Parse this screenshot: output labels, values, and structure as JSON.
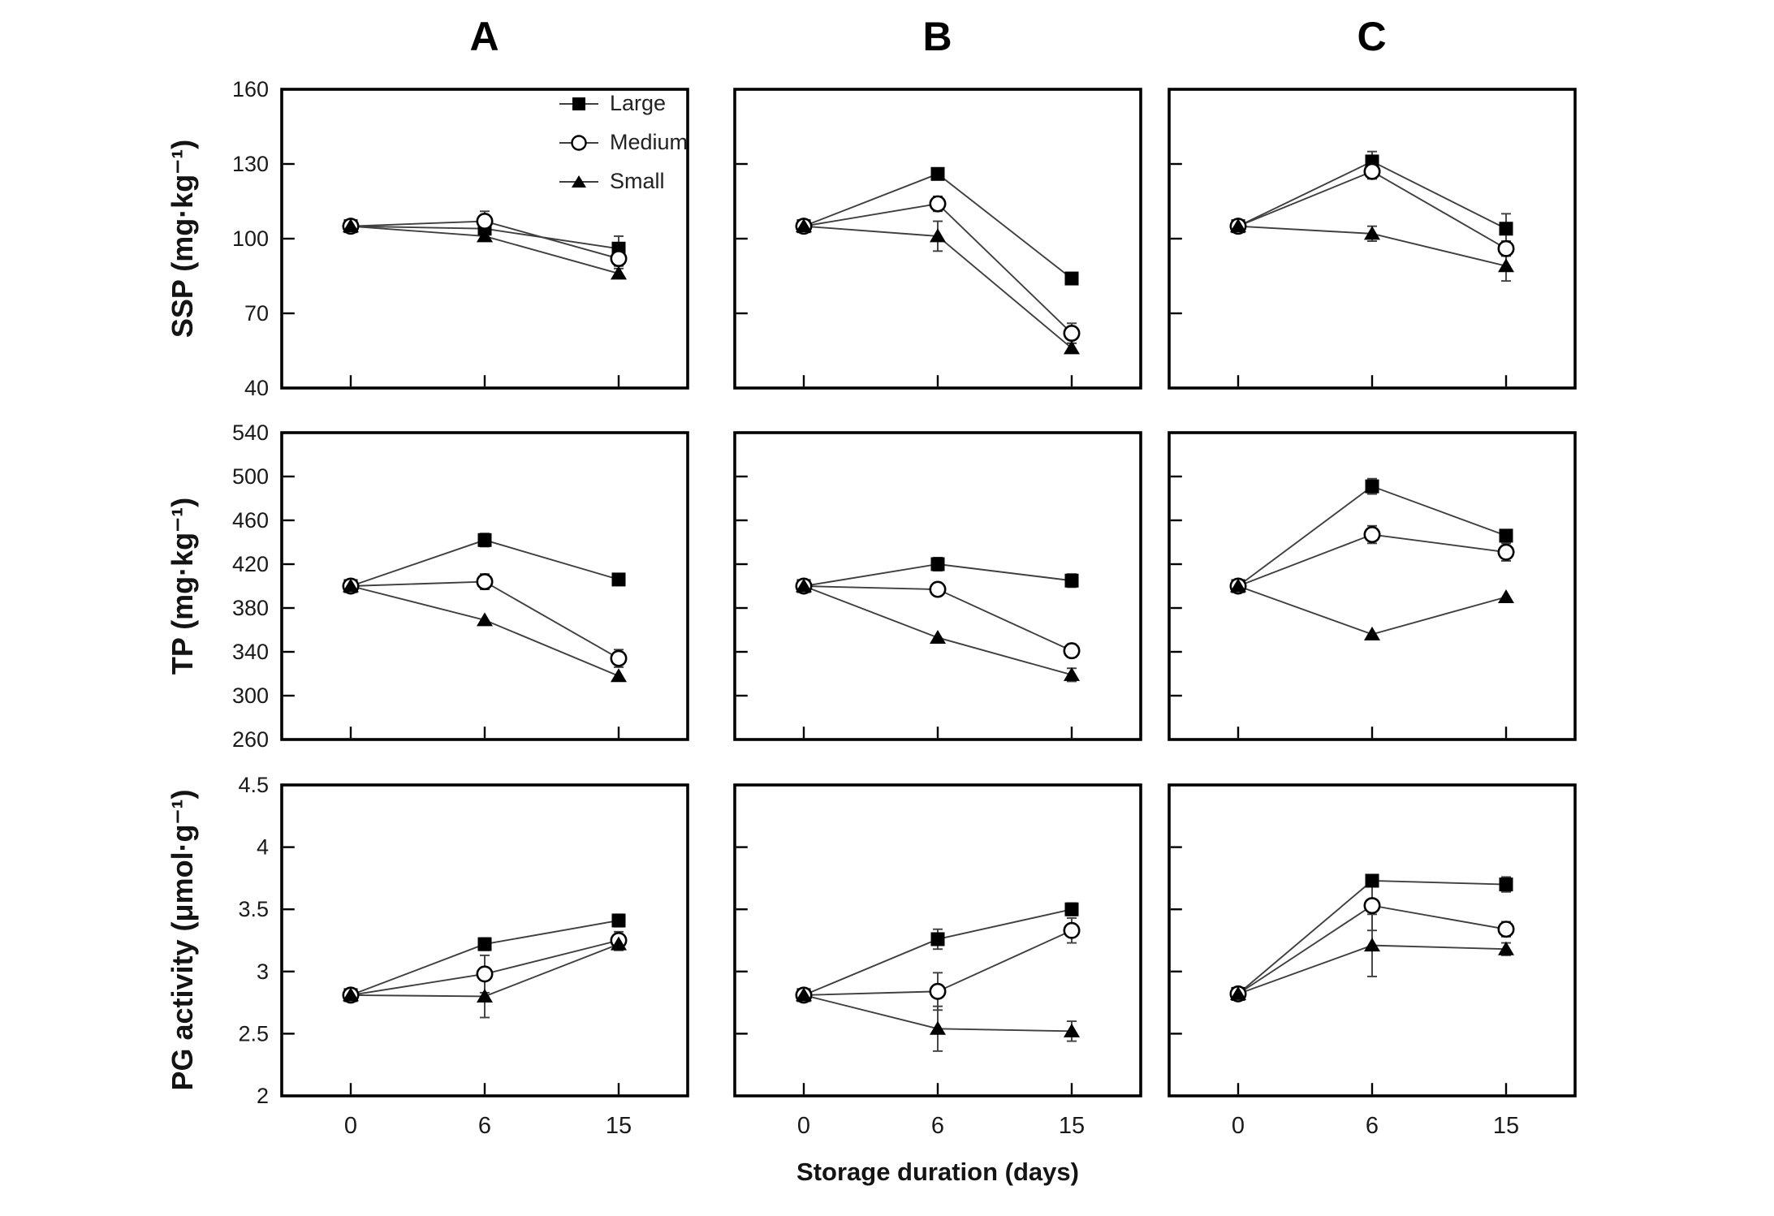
{
  "figure": {
    "column_titles": [
      "A",
      "B",
      "C"
    ],
    "rows": [
      {
        "ylabel": "SSP (mg·kg⁻¹)"
      },
      {
        "ylabel": "TP (mg·kg⁻¹)"
      },
      {
        "ylabel": "PG activity (μmol·g⁻¹)"
      }
    ],
    "x_axis": {
      "label": "Storage duration (days)",
      "tick_labels": [
        "0",
        "6",
        "15"
      ]
    },
    "legend": {
      "position": "top-right-of-panel-A",
      "items": [
        {
          "label": "Large",
          "marker": "filled-square"
        },
        {
          "label": "Medium",
          "marker": "open-circle"
        },
        {
          "label": "Small",
          "marker": "filled-triangle"
        }
      ]
    },
    "colors": {
      "background": "#ffffff",
      "frame": "#000000",
      "line": "#3f3f3f",
      "marker": "#000000",
      "text": "#1a1a1a"
    }
  },
  "chart_data": [
    {
      "type": "line",
      "panel": "A",
      "measure": "SSP",
      "ylabel": "SSP (mg·kg⁻¹)",
      "x_days": [
        0,
        6,
        15
      ],
      "ylim": [
        40,
        160
      ],
      "yticks": [
        160,
        130,
        100,
        70,
        40
      ],
      "series": [
        {
          "name": "Large",
          "marker": "filled-square",
          "values": [
            105,
            104,
            96
          ],
          "errors": [
            0,
            2,
            5
          ]
        },
        {
          "name": "Medium",
          "marker": "open-circle",
          "values": [
            105,
            107,
            92
          ],
          "errors": [
            0,
            4,
            3
          ]
        },
        {
          "name": "Small",
          "marker": "filled-triangle",
          "values": [
            105,
            101,
            86
          ],
          "errors": [
            0,
            2,
            2
          ]
        }
      ]
    },
    {
      "type": "line",
      "panel": "B",
      "measure": "SSP",
      "ylabel": "SSP (mg·kg⁻¹)",
      "x_days": [
        0,
        6,
        15
      ],
      "ylim": [
        40,
        160
      ],
      "yticks": [
        160,
        130,
        100,
        70,
        40
      ],
      "series": [
        {
          "name": "Large",
          "marker": "filled-square",
          "values": [
            105,
            126,
            84
          ],
          "errors": [
            0,
            0,
            0
          ]
        },
        {
          "name": "Medium",
          "marker": "open-circle",
          "values": [
            105,
            114,
            62
          ],
          "errors": [
            0,
            3,
            4
          ]
        },
        {
          "name": "Small",
          "marker": "filled-triangle",
          "values": [
            105,
            101,
            56
          ],
          "errors": [
            0,
            6,
            2
          ]
        }
      ]
    },
    {
      "type": "line",
      "panel": "C",
      "measure": "SSP",
      "ylabel": "SSP (mg·kg⁻¹)",
      "x_days": [
        0,
        6,
        15
      ],
      "ylim": [
        40,
        160
      ],
      "yticks": [
        160,
        130,
        100,
        70,
        40
      ],
      "series": [
        {
          "name": "Large",
          "marker": "filled-square",
          "values": [
            105,
            131,
            104
          ],
          "errors": [
            0,
            4,
            6
          ]
        },
        {
          "name": "Medium",
          "marker": "open-circle",
          "values": [
            105,
            127,
            96
          ],
          "errors": [
            0,
            3,
            3
          ]
        },
        {
          "name": "Small",
          "marker": "filled-triangle",
          "values": [
            105,
            102,
            89
          ],
          "errors": [
            0,
            3,
            6
          ]
        }
      ]
    },
    {
      "type": "line",
      "panel": "A",
      "measure": "TP",
      "ylabel": "TP (mg·kg⁻¹)",
      "x_days": [
        0,
        6,
        15
      ],
      "ylim": [
        260,
        540
      ],
      "yticks": [
        540,
        500,
        460,
        420,
        380,
        340,
        300,
        260
      ],
      "series": [
        {
          "name": "Large",
          "marker": "filled-square",
          "values": [
            400,
            442,
            406
          ],
          "errors": [
            0,
            6,
            0
          ]
        },
        {
          "name": "Medium",
          "marker": "open-circle",
          "values": [
            400,
            404,
            334
          ],
          "errors": [
            0,
            7,
            8
          ]
        },
        {
          "name": "Small",
          "marker": "filled-triangle",
          "values": [
            400,
            369,
            318
          ],
          "errors": [
            0,
            0,
            0
          ]
        }
      ]
    },
    {
      "type": "line",
      "panel": "B",
      "measure": "TP",
      "ylabel": "TP (mg·kg⁻¹)",
      "x_days": [
        0,
        6,
        15
      ],
      "ylim": [
        260,
        540
      ],
      "yticks": [
        540,
        500,
        460,
        420,
        380,
        340,
        300,
        260
      ],
      "series": [
        {
          "name": "Large",
          "marker": "filled-square",
          "values": [
            400,
            420,
            405
          ],
          "errors": [
            0,
            6,
            6
          ]
        },
        {
          "name": "Medium",
          "marker": "open-circle",
          "values": [
            400,
            397,
            341
          ],
          "errors": [
            0,
            0,
            6
          ]
        },
        {
          "name": "Small",
          "marker": "filled-triangle",
          "values": [
            400,
            353,
            319
          ],
          "errors": [
            0,
            0,
            6
          ]
        }
      ]
    },
    {
      "type": "line",
      "panel": "C",
      "measure": "TP",
      "ylabel": "TP (mg·kg⁻¹)",
      "x_days": [
        0,
        6,
        15
      ],
      "ylim": [
        260,
        540
      ],
      "yticks": [
        540,
        500,
        460,
        420,
        380,
        340,
        300,
        260
      ],
      "series": [
        {
          "name": "Large",
          "marker": "filled-square",
          "values": [
            400,
            491,
            446
          ],
          "errors": [
            0,
            7,
            4
          ]
        },
        {
          "name": "Medium",
          "marker": "open-circle",
          "values": [
            400,
            447,
            431
          ],
          "errors": [
            0,
            8,
            8
          ]
        },
        {
          "name": "Small",
          "marker": "filled-triangle",
          "values": [
            400,
            356,
            390
          ],
          "errors": [
            0,
            0,
            0
          ]
        }
      ]
    },
    {
      "type": "line",
      "panel": "A",
      "measure": "PG activity",
      "ylabel": "PG activity (μmol·g⁻¹)",
      "x_days": [
        0,
        6,
        15
      ],
      "ylim": [
        2,
        4.5
      ],
      "yticks": [
        4.5,
        4,
        3.5,
        3,
        2.5,
        2
      ],
      "series": [
        {
          "name": "Large",
          "marker": "filled-square",
          "values": [
            2.81,
            3.22,
            3.41
          ],
          "errors": [
            0,
            0.05,
            0.05
          ]
        },
        {
          "name": "Medium",
          "marker": "open-circle",
          "values": [
            2.81,
            2.98,
            3.25
          ],
          "errors": [
            0,
            0.15,
            0.07
          ]
        },
        {
          "name": "Small",
          "marker": "filled-triangle",
          "values": [
            2.81,
            2.8,
            3.22
          ],
          "errors": [
            0,
            0.17,
            0.05
          ]
        }
      ]
    },
    {
      "type": "line",
      "panel": "B",
      "measure": "PG activity",
      "ylabel": "PG activity (μmol·g⁻¹)",
      "x_days": [
        0,
        6,
        15
      ],
      "ylim": [
        2,
        4.5
      ],
      "yticks": [
        4.5,
        4,
        3.5,
        3,
        2.5,
        2
      ],
      "series": [
        {
          "name": "Large",
          "marker": "filled-square",
          "values": [
            2.81,
            3.26,
            3.5
          ],
          "errors": [
            0,
            0.08,
            0.05
          ]
        },
        {
          "name": "Medium",
          "marker": "open-circle",
          "values": [
            2.81,
            2.84,
            3.33
          ],
          "errors": [
            0,
            0.15,
            0.1
          ]
        },
        {
          "name": "Small",
          "marker": "filled-triangle",
          "values": [
            2.81,
            2.54,
            2.52
          ],
          "errors": [
            0,
            0.18,
            0.08
          ]
        }
      ]
    },
    {
      "type": "line",
      "panel": "C",
      "measure": "PG activity",
      "ylabel": "PG activity (μmol·g⁻¹)",
      "x_days": [
        0,
        6,
        15
      ],
      "ylim": [
        2,
        4.5
      ],
      "yticks": [
        4.5,
        4,
        3.5,
        3,
        2.5,
        2
      ],
      "series": [
        {
          "name": "Large",
          "marker": "filled-square",
          "values": [
            2.82,
            3.73,
            3.7
          ],
          "errors": [
            0,
            0.04,
            0.06
          ]
        },
        {
          "name": "Medium",
          "marker": "open-circle",
          "values": [
            2.82,
            3.53,
            3.34
          ],
          "errors": [
            0,
            0.2,
            0.06
          ]
        },
        {
          "name": "Small",
          "marker": "filled-triangle",
          "values": [
            2.82,
            3.21,
            3.18
          ],
          "errors": [
            0,
            0.25,
            0.05
          ]
        }
      ]
    }
  ]
}
